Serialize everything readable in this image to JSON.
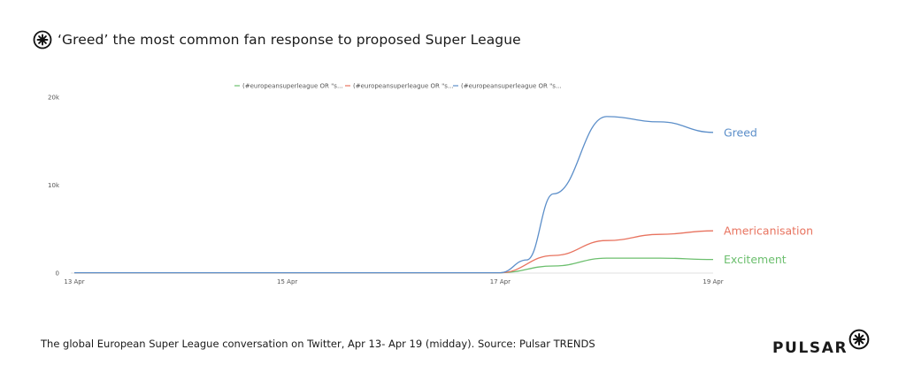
{
  "title": "‘Greed’ the most common fan response to proposed Super League",
  "footer": "The  global European Super League conversation on Twitter, Apr 13- Apr 19 (midday). Source: Pulsar TRENDS",
  "brand": {
    "name": "PULSAR",
    "logo_icon": "pulsar-asterisk-icon"
  },
  "chart_data": {
    "type": "line",
    "x_ticks": [
      "13 Apr",
      "15 Apr",
      "17 Apr",
      "19 Apr"
    ],
    "x_range": [
      "13 Apr",
      "19 Apr"
    ],
    "y_ticks": [
      "0",
      "10k",
      "20k"
    ],
    "ylim": [
      0,
      20000
    ],
    "grid": false,
    "legend": "top-center",
    "series": [
      {
        "legend": "(#europeansuperleague OR \"s...",
        "name": "Excitement",
        "color": "#6cbf6e",
        "points": [
          [
            "13 Apr",
            40
          ],
          [
            "15 Apr",
            40
          ],
          [
            "17 Apr 00:00",
            40
          ],
          [
            "17 Apr 12:00",
            800
          ],
          [
            "18 Apr 00:00",
            1700
          ],
          [
            "18 Apr 12:00",
            1700
          ],
          [
            "19 Apr 00:00",
            1550
          ]
        ]
      },
      {
        "legend": "(#europeansuperleague OR \"s...",
        "name": "Americanisation",
        "color": "#e8735f",
        "points": [
          [
            "13 Apr",
            40
          ],
          [
            "15 Apr",
            40
          ],
          [
            "17 Apr 00:00",
            40
          ],
          [
            "17 Apr 12:00",
            2000
          ],
          [
            "18 Apr 00:00",
            3700
          ],
          [
            "18 Apr 12:00",
            4400
          ],
          [
            "19 Apr 00:00",
            4800
          ]
        ]
      },
      {
        "legend": "(#europeansuperleague OR \"s...",
        "name": "Greed",
        "color": "#5b8ec9",
        "points": [
          [
            "13 Apr",
            40
          ],
          [
            "15 Apr",
            40
          ],
          [
            "17 Apr 00:00",
            40
          ],
          [
            "17 Apr 06:00",
            1500
          ],
          [
            "17 Apr 12:00",
            9000
          ],
          [
            "18 Apr 00:00",
            17800
          ],
          [
            "18 Apr 12:00",
            17200
          ],
          [
            "19 Apr 00:00",
            16000
          ]
        ]
      }
    ]
  }
}
